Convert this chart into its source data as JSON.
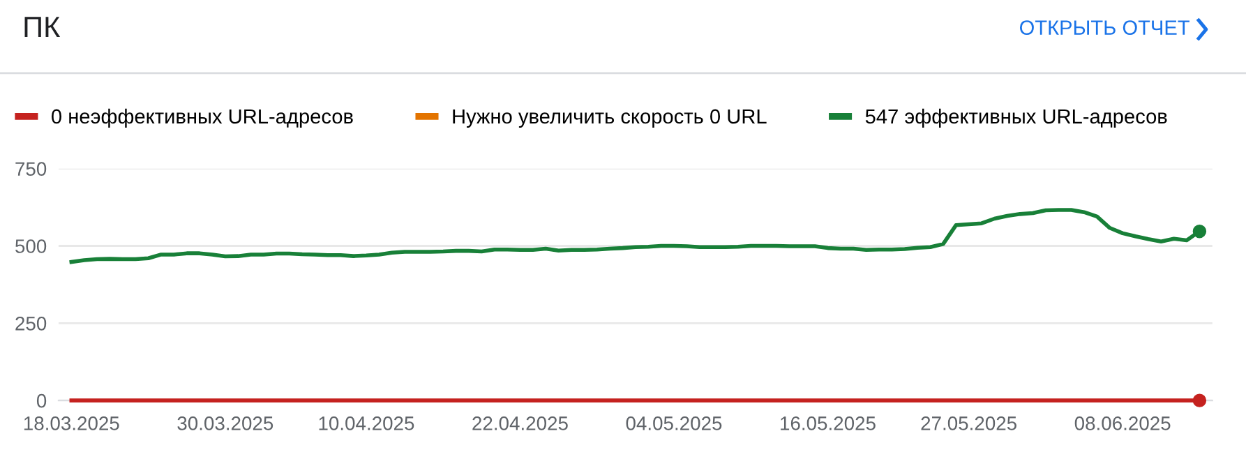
{
  "chart_data": {
    "type": "line",
    "title": "ПК",
    "annotations": [
      "ОТКРЫТЬ ОТЧЕТ"
    ],
    "x": [
      "2025-03-18",
      "2025-03-19",
      "2025-03-20",
      "2025-03-21",
      "2025-03-22",
      "2025-03-23",
      "2025-03-24",
      "2025-03-25",
      "2025-03-26",
      "2025-03-27",
      "2025-03-28",
      "2025-03-29",
      "2025-03-30",
      "2025-03-31",
      "2025-04-01",
      "2025-04-02",
      "2025-04-03",
      "2025-04-04",
      "2025-04-05",
      "2025-04-06",
      "2025-04-07",
      "2025-04-08",
      "2025-04-09",
      "2025-04-10",
      "2025-04-11",
      "2025-04-12",
      "2025-04-13",
      "2025-04-14",
      "2025-04-15",
      "2025-04-16",
      "2025-04-17",
      "2025-04-18",
      "2025-04-19",
      "2025-04-20",
      "2025-04-21",
      "2025-04-22",
      "2025-04-23",
      "2025-04-24",
      "2025-04-25",
      "2025-04-26",
      "2025-04-27",
      "2025-04-28",
      "2025-04-29",
      "2025-04-30",
      "2025-05-01",
      "2025-05-02",
      "2025-05-03",
      "2025-05-04",
      "2025-05-05",
      "2025-05-06",
      "2025-05-07",
      "2025-05-08",
      "2025-05-09",
      "2025-05-10",
      "2025-05-11",
      "2025-05-12",
      "2025-05-13",
      "2025-05-14",
      "2025-05-15",
      "2025-05-16",
      "2025-05-17",
      "2025-05-18",
      "2025-05-19",
      "2025-05-20",
      "2025-05-21",
      "2025-05-22",
      "2025-05-23",
      "2025-05-24",
      "2025-05-25",
      "2025-05-26",
      "2025-05-27",
      "2025-05-28",
      "2025-05-29",
      "2025-05-30",
      "2025-05-31",
      "2025-06-01",
      "2025-06-02",
      "2025-06-03",
      "2025-06-04",
      "2025-06-05",
      "2025-06-06",
      "2025-06-07",
      "2025-06-08",
      "2025-06-09",
      "2025-06-10",
      "2025-06-11",
      "2025-06-12",
      "2025-06-13",
      "2025-06-14"
    ],
    "series": [
      {
        "name": "0 неэффективных URL-адресов",
        "color": "#c5221f",
        "values": [
          0,
          0,
          0,
          0,
          0,
          0,
          0,
          0,
          0,
          0,
          0,
          0,
          0,
          0,
          0,
          0,
          0,
          0,
          0,
          0,
          0,
          0,
          0,
          0,
          0,
          0,
          0,
          0,
          0,
          0,
          0,
          0,
          0,
          0,
          0,
          0,
          0,
          0,
          0,
          0,
          0,
          0,
          0,
          0,
          0,
          0,
          0,
          0,
          0,
          0,
          0,
          0,
          0,
          0,
          0,
          0,
          0,
          0,
          0,
          0,
          0,
          0,
          0,
          0,
          0,
          0,
          0,
          0,
          0,
          0,
          0,
          0,
          0,
          0,
          0,
          0,
          0,
          0,
          0,
          0,
          0,
          0,
          0,
          0,
          0,
          0,
          0,
          0,
          0
        ]
      },
      {
        "name": "Нужно увеличить скорость 0 URL",
        "color": "#e37400",
        "values": [
          null,
          null,
          null,
          null,
          null,
          null,
          null,
          null,
          null,
          null,
          null,
          null,
          null,
          null,
          null,
          null,
          null,
          null,
          null,
          null,
          null,
          null,
          null,
          null,
          null,
          null,
          null,
          null,
          null,
          null,
          null,
          null,
          null,
          null,
          null,
          null,
          null,
          null,
          null,
          null,
          null,
          null,
          null,
          null,
          null,
          null,
          null,
          null,
          null,
          null,
          null,
          null,
          null,
          null,
          null,
          null,
          null,
          null,
          null,
          null,
          null,
          null,
          null,
          null,
          null,
          null,
          null,
          null,
          null,
          null,
          null,
          null,
          null,
          null,
          null,
          null,
          null,
          null,
          null,
          null,
          null,
          null,
          null,
          null,
          null,
          null,
          null,
          null,
          null
        ]
      },
      {
        "name": "547 эффективных URL-адресов",
        "color": "#188038",
        "values": [
          448,
          454,
          457,
          458,
          457,
          457,
          460,
          472,
          472,
          476,
          476,
          472,
          466,
          467,
          472,
          472,
          475,
          475,
          473,
          472,
          470,
          470,
          467,
          469,
          472,
          478,
          481,
          481,
          481,
          482,
          484,
          484,
          482,
          488,
          488,
          487,
          487,
          491,
          485,
          487,
          487,
          488,
          491,
          493,
          496,
          497,
          500,
          500,
          499,
          496,
          496,
          496,
          497,
          500,
          500,
          500,
          499,
          499,
          499,
          493,
          491,
          491,
          487,
          488,
          488,
          490,
          494,
          496,
          506,
          567,
          570,
          573,
          588,
          597,
          603,
          606,
          615,
          616,
          616,
          609,
          595,
          558,
          541,
          531,
          522,
          514,
          523,
          518,
          547
        ]
      }
    ],
    "ylim": [
      0,
      750
    ],
    "yticks": [
      0,
      250,
      500,
      750
    ],
    "xlim": [
      "2025-03-17",
      "2025-06-15"
    ],
    "xticks": [
      {
        "value": "2025-03-18",
        "label": "18.03.2025"
      },
      {
        "value": "2025-03-30",
        "label": "30.03.2025"
      },
      {
        "value": "2025-04-10",
        "label": "10.04.2025"
      },
      {
        "value": "2025-04-22",
        "label": "22.04.2025"
      },
      {
        "value": "2025-05-04",
        "label": "04.05.2025"
      },
      {
        "value": "2025-05-16",
        "label": "16.05.2025"
      },
      {
        "value": "2025-05-27",
        "label": "27.05.2025"
      },
      {
        "value": "2025-06-08",
        "label": "08.06.2025"
      }
    ],
    "grid": "y",
    "legend": "top"
  }
}
